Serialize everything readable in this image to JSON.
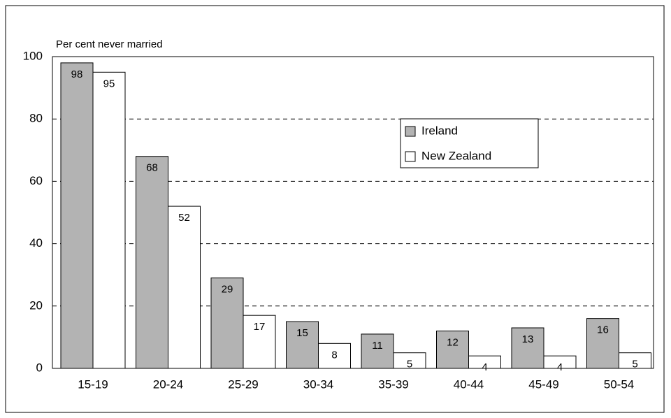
{
  "chart_data": {
    "type": "bar",
    "ylabel": "Per cent never married",
    "categories": [
      "15-19",
      "20-24",
      "25-29",
      "30-34",
      "35-39",
      "40-44",
      "45-49",
      "50-54"
    ],
    "series": [
      {
        "name": "Ireland",
        "color": "#b3b3b3",
        "values": [
          98,
          68,
          29,
          15,
          11,
          12,
          13,
          16
        ]
      },
      {
        "name": "New Zealand",
        "color": "#ffffff",
        "values": [
          95,
          52,
          17,
          8,
          5,
          4,
          4,
          5
        ]
      }
    ],
    "ylim": [
      0,
      100
    ],
    "yticks": [
      0,
      20,
      40,
      60,
      80,
      100
    ],
    "grid": true
  }
}
